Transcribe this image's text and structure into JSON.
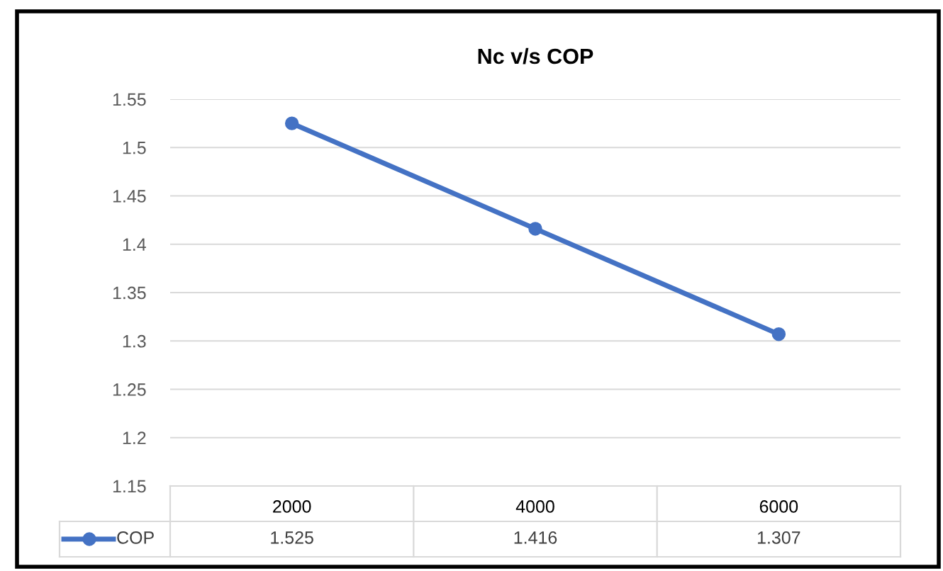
{
  "chart_data": {
    "type": "line",
    "title": "Nc v/s COP",
    "categories": [
      "2000",
      "4000",
      "6000"
    ],
    "series": [
      {
        "name": "COP",
        "color": "#4472c4",
        "values": [
          1.525,
          1.416,
          1.307
        ]
      }
    ],
    "ylim": [
      1.15,
      1.55
    ],
    "yticks": [
      1.15,
      1.2,
      1.25,
      1.3,
      1.35,
      1.4,
      1.45,
      1.5,
      1.55
    ],
    "grid": "y",
    "legend": "bottom",
    "marker": "circle",
    "line_style": "solid",
    "data_labels": true
  }
}
